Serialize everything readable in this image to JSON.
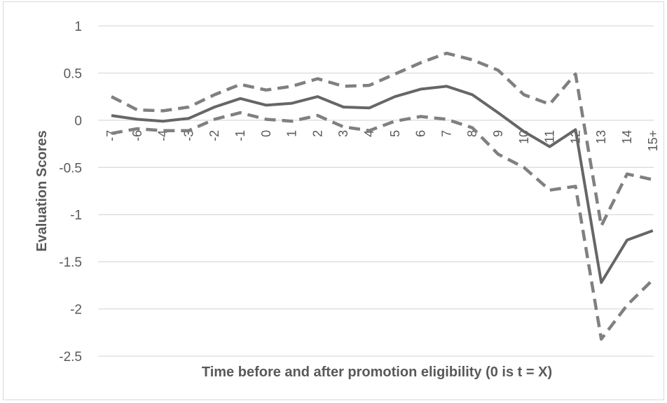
{
  "chart_data": {
    "type": "line",
    "title": "",
    "xlabel": "Time before and after promotion eligibility (0 is t = X)",
    "ylabel": "Evaluation Scores",
    "categories": [
      "-7",
      "-6",
      "-4",
      "-3",
      "-2",
      "-1",
      "0",
      "1",
      "2",
      "3",
      "4",
      "5",
      "6",
      "7",
      "8",
      "9",
      "10",
      "11",
      "12",
      "13",
      "14",
      "15+"
    ],
    "ylim": [
      -2.5,
      1
    ],
    "yticks": [
      1,
      0.5,
      0,
      -0.5,
      -1,
      -1.5,
      -2,
      -2.5
    ],
    "ytick_labels": [
      "1",
      "0.5",
      "0",
      "-0.5",
      "-1",
      "-1.5",
      "-2",
      "-2.5"
    ],
    "grid": true,
    "legend": "none",
    "series": [
      {
        "style": "solid",
        "color": "#666666",
        "values": [
          0.05,
          0.01,
          -0.01,
          0.02,
          0.14,
          0.23,
          0.16,
          0.18,
          0.25,
          0.14,
          0.13,
          0.25,
          0.33,
          0.36,
          0.27,
          0.08,
          -0.12,
          -0.28,
          -0.1,
          -1.72,
          -1.27,
          -1.17
        ]
      },
      {
        "style": "dashed",
        "color": "#808080",
        "values": [
          0.25,
          0.11,
          0.1,
          0.14,
          0.27,
          0.38,
          0.32,
          0.36,
          0.44,
          0.36,
          0.37,
          0.49,
          0.61,
          0.71,
          0.64,
          0.53,
          0.27,
          0.17,
          0.49,
          -1.12,
          -0.57,
          -0.63
        ]
      },
      {
        "style": "dashed",
        "color": "#808080",
        "values": [
          -0.14,
          -0.09,
          -0.11,
          -0.11,
          0.01,
          0.08,
          0.01,
          -0.01,
          0.05,
          -0.07,
          -0.11,
          -0.01,
          0.04,
          0.01,
          -0.08,
          -0.36,
          -0.5,
          -0.74,
          -0.7,
          -2.32,
          -1.96,
          -1.69
        ]
      }
    ]
  }
}
